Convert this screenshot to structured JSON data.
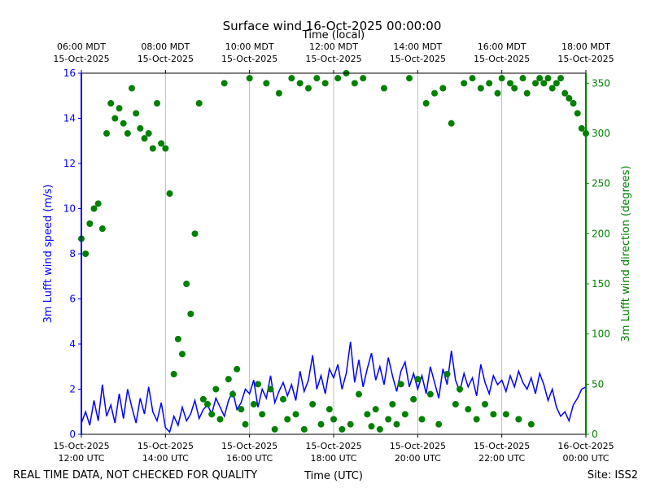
{
  "chart_data": {
    "type": "line",
    "title": "Surface wind 16-Oct-2025 00:00:00",
    "xlabel": "Time (UTC)",
    "x2label": "Time (local)",
    "ylabel": "3m Lufft wind speed (m/s)",
    "y2label": "3m Lufft wind direction (degrees)",
    "footer_left": "REAL TIME DATA, NOT CHECKED FOR QUALITY",
    "footer_right": "Site: ISS2",
    "xlim": [
      "2025-10-15T12:00",
      "2025-10-16T00:00"
    ],
    "xticks": [
      {
        "value": "2025-10-15T12:00",
        "label": [
          "15-Oct-2025",
          "12:00 UTC"
        ]
      },
      {
        "value": "2025-10-15T14:00",
        "label": [
          "15-Oct-2025",
          "14:00 UTC"
        ]
      },
      {
        "value": "2025-10-15T16:00",
        "label": [
          "15-Oct-2025",
          "16:00 UTC"
        ]
      },
      {
        "value": "2025-10-15T18:00",
        "label": [
          "15-Oct-2025",
          "18:00 UTC"
        ]
      },
      {
        "value": "2025-10-15T20:00",
        "label": [
          "15-Oct-2025",
          "20:00 UTC"
        ]
      },
      {
        "value": "2025-10-15T22:00",
        "label": [
          "15-Oct-2025",
          "22:00 UTC"
        ]
      },
      {
        "value": "2025-10-16T00:00",
        "label": [
          "16-Oct-2025",
          "00:00 UTC"
        ]
      }
    ],
    "x2ticks": [
      {
        "value": "2025-10-15T12:00",
        "label": [
          "06:00 MDT",
          "15-Oct-2025"
        ]
      },
      {
        "value": "2025-10-15T14:00",
        "label": [
          "08:00 MDT",
          "15-Oct-2025"
        ]
      },
      {
        "value": "2025-10-15T16:00",
        "label": [
          "10:00 MDT",
          "15-Oct-2025"
        ]
      },
      {
        "value": "2025-10-15T18:00",
        "label": [
          "12:00 MDT",
          "15-Oct-2025"
        ]
      },
      {
        "value": "2025-10-15T20:00",
        "label": [
          "14:00 MDT",
          "15-Oct-2025"
        ]
      },
      {
        "value": "2025-10-15T22:00",
        "label": [
          "16:00 MDT",
          "15-Oct-2025"
        ]
      },
      {
        "value": "2025-10-16T00:00",
        "label": [
          "18:00 MDT",
          "15-Oct-2025"
        ]
      }
    ],
    "ylim": [
      0,
      16
    ],
    "yticks": [
      0,
      2,
      4,
      6,
      8,
      10,
      12,
      14,
      16
    ],
    "y2lim": [
      0,
      360
    ],
    "y2ticks": [
      0,
      50,
      100,
      150,
      200,
      250,
      300,
      350
    ],
    "grid": "x",
    "x": [
      "2025-10-15T12:00",
      "2025-10-15T12:06",
      "2025-10-15T12:12",
      "2025-10-15T12:18",
      "2025-10-15T12:24",
      "2025-10-15T12:30",
      "2025-10-15T12:36",
      "2025-10-15T12:42",
      "2025-10-15T12:48",
      "2025-10-15T12:54",
      "2025-10-15T13:00",
      "2025-10-15T13:06",
      "2025-10-15T13:12",
      "2025-10-15T13:18",
      "2025-10-15T13:24",
      "2025-10-15T13:30",
      "2025-10-15T13:36",
      "2025-10-15T13:42",
      "2025-10-15T13:48",
      "2025-10-15T13:54",
      "2025-10-15T14:00",
      "2025-10-15T14:06",
      "2025-10-15T14:12",
      "2025-10-15T14:18",
      "2025-10-15T14:24",
      "2025-10-15T14:30",
      "2025-10-15T14:36",
      "2025-10-15T14:42",
      "2025-10-15T14:48",
      "2025-10-15T14:54",
      "2025-10-15T15:00",
      "2025-10-15T15:06",
      "2025-10-15T15:12",
      "2025-10-15T15:18",
      "2025-10-15T15:24",
      "2025-10-15T15:30",
      "2025-10-15T15:36",
      "2025-10-15T15:42",
      "2025-10-15T15:48",
      "2025-10-15T15:54",
      "2025-10-15T16:00",
      "2025-10-15T16:06",
      "2025-10-15T16:12",
      "2025-10-15T16:18",
      "2025-10-15T16:24",
      "2025-10-15T16:30",
      "2025-10-15T16:36",
      "2025-10-15T16:42",
      "2025-10-15T16:48",
      "2025-10-15T16:54",
      "2025-10-15T17:00",
      "2025-10-15T17:06",
      "2025-10-15T17:12",
      "2025-10-15T17:18",
      "2025-10-15T17:24",
      "2025-10-15T17:30",
      "2025-10-15T17:36",
      "2025-10-15T17:42",
      "2025-10-15T17:48",
      "2025-10-15T17:54",
      "2025-10-15T18:00",
      "2025-10-15T18:06",
      "2025-10-15T18:12",
      "2025-10-15T18:18",
      "2025-10-15T18:24",
      "2025-10-15T18:30",
      "2025-10-15T18:36",
      "2025-10-15T18:42",
      "2025-10-15T18:48",
      "2025-10-15T18:54",
      "2025-10-15T19:00",
      "2025-10-15T19:06",
      "2025-10-15T19:12",
      "2025-10-15T19:18",
      "2025-10-15T19:24",
      "2025-10-15T19:30",
      "2025-10-15T19:36",
      "2025-10-15T19:42",
      "2025-10-15T19:48",
      "2025-10-15T19:54",
      "2025-10-15T20:00",
      "2025-10-15T20:06",
      "2025-10-15T20:12",
      "2025-10-15T20:18",
      "2025-10-15T20:24",
      "2025-10-15T20:30",
      "2025-10-15T20:36",
      "2025-10-15T20:42",
      "2025-10-15T20:48",
      "2025-10-15T20:54",
      "2025-10-15T21:00",
      "2025-10-15T21:06",
      "2025-10-15T21:12",
      "2025-10-15T21:18",
      "2025-10-15T21:24",
      "2025-10-15T21:30",
      "2025-10-15T21:36",
      "2025-10-15T21:42",
      "2025-10-15T21:48",
      "2025-10-15T21:54",
      "2025-10-15T22:00",
      "2025-10-15T22:06",
      "2025-10-15T22:12",
      "2025-10-15T22:18",
      "2025-10-15T22:24",
      "2025-10-15T22:30",
      "2025-10-15T22:36",
      "2025-10-15T22:42",
      "2025-10-15T22:48",
      "2025-10-15T22:54",
      "2025-10-15T23:00",
      "2025-10-15T23:06",
      "2025-10-15T23:12",
      "2025-10-15T23:18",
      "2025-10-15T23:24",
      "2025-10-15T23:30",
      "2025-10-15T23:36",
      "2025-10-15T23:42",
      "2025-10-15T23:48",
      "2025-10-15T23:54",
      "2025-10-16T00:00"
    ],
    "series": [
      {
        "type": "line",
        "color": "#0000ff",
        "values": [
          0.5,
          1.0,
          0.4,
          1.5,
          0.6,
          2.2,
          0.8,
          1.3,
          0.5,
          1.8,
          0.7,
          2.0,
          1.2,
          0.5,
          1.6,
          0.9,
          2.1,
          1.0,
          0.6,
          1.4,
          0.3,
          0.1,
          0.8,
          0.4,
          1.2,
          0.6,
          0.9,
          1.5,
          0.7,
          1.1,
          1.3,
          0.9,
          1.6,
          1.2,
          0.8,
          1.5,
          1.9,
          1.1,
          1.4,
          2.0,
          1.8,
          2.4,
          1.2,
          2.0,
          1.6,
          2.6,
          1.4,
          1.9,
          2.3,
          1.7,
          2.2,
          1.5,
          2.8,
          1.9,
          2.4,
          3.5,
          2.0,
          2.6,
          1.8,
          2.9,
          2.5,
          3.1,
          2.0,
          2.7,
          4.1,
          2.3,
          3.3,
          2.1,
          2.9,
          3.6,
          2.4,
          3.0,
          2.2,
          3.4,
          2.6,
          1.9,
          2.8,
          3.2,
          2.1,
          2.7,
          2.0,
          2.6,
          1.8,
          3.0,
          2.3,
          1.6,
          2.9,
          2.2,
          3.7,
          2.4,
          1.9,
          2.7,
          2.1,
          2.5,
          1.7,
          3.1,
          2.3,
          1.8,
          2.6,
          2.2,
          2.4,
          1.9,
          2.6,
          2.1,
          2.8,
          2.3,
          2.0,
          2.5,
          1.8,
          2.7,
          2.2,
          1.5,
          2.0,
          1.2,
          0.8,
          1.0,
          0.6,
          1.3,
          1.6,
          2.0,
          2.1
        ]
      },
      {
        "type": "scatter",
        "axis": "y2",
        "color": "#008000",
        "values": [
          195,
          180,
          210,
          225,
          230,
          205,
          300,
          330,
          315,
          325,
          310,
          300,
          345,
          320,
          305,
          295,
          300,
          285,
          330,
          290,
          285,
          240,
          60,
          95,
          80,
          150,
          120,
          200,
          330,
          35,
          30,
          20,
          45,
          15,
          350,
          55,
          40,
          65,
          25,
          10,
          355,
          30,
          50,
          20,
          350,
          45,
          5,
          340,
          35,
          15,
          355,
          20,
          350,
          5,
          345,
          30,
          355,
          10,
          350,
          25,
          15,
          355,
          5,
          360,
          10,
          350,
          40,
          355,
          20,
          8,
          25,
          5,
          345,
          15,
          30,
          10,
          50,
          20,
          355,
          35,
          55,
          15,
          330,
          40,
          340,
          10,
          345,
          60,
          310,
          30,
          45,
          350,
          25,
          355,
          15,
          345,
          30,
          350,
          20,
          340,
          355,
          20,
          350,
          345,
          15,
          355,
          340,
          10,
          350,
          355,
          350,
          355,
          345,
          350,
          355,
          340,
          335,
          330,
          320,
          305,
          300
        ]
      }
    ]
  }
}
